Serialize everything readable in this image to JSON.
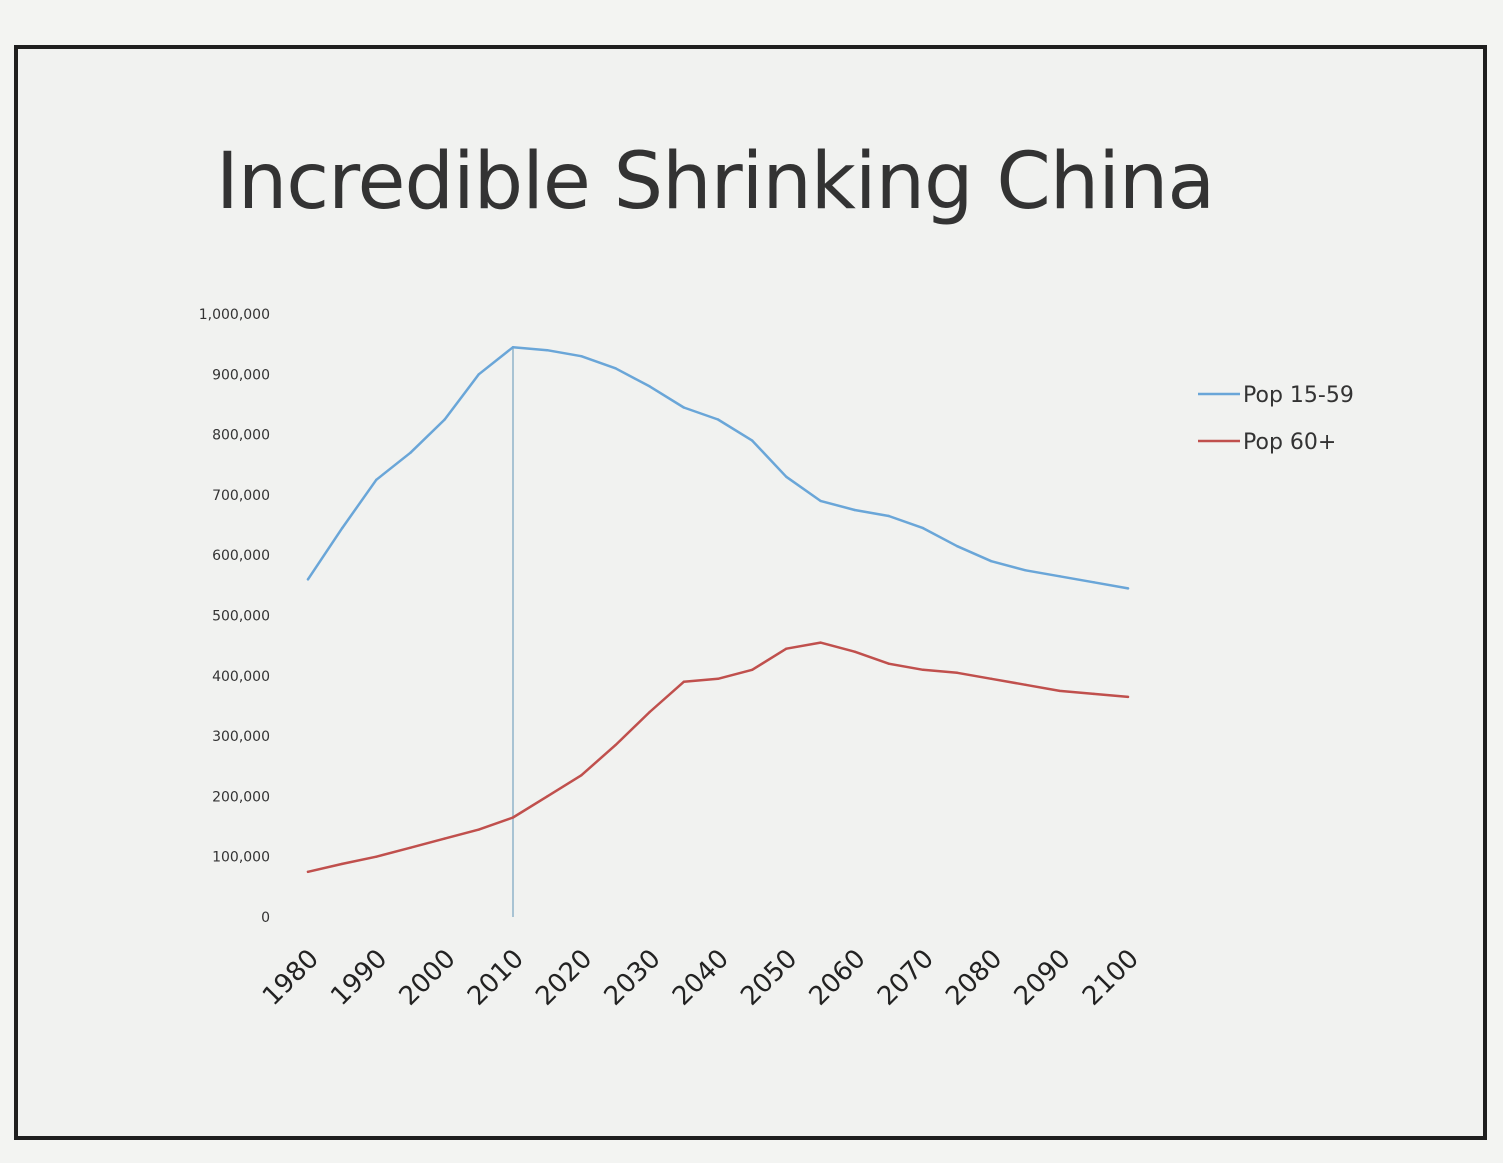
{
  "chart_data": {
    "type": "line",
    "title": "Incredible Shrinking China",
    "xlabel": "",
    "ylabel": "",
    "ylim": [
      0,
      1000000
    ],
    "xlim": [
      1980,
      2100
    ],
    "x_tick_labels": [
      "1980",
      "1990",
      "2000",
      "2010",
      "2020",
      "2030",
      "2040",
      "2050",
      "2060",
      "2070",
      "2080",
      "2090",
      "2100"
    ],
    "y_tick_labels": [
      "0",
      "100,000",
      "200,000",
      "300,000",
      "400,000",
      "500,000",
      "600,000",
      "700,000",
      "800,000",
      "900,000",
      "1,000,000"
    ],
    "y_ticks": [
      0,
      100000,
      200000,
      300000,
      400000,
      500000,
      600000,
      700000,
      800000,
      900000,
      1000000
    ],
    "grid": false,
    "legend_position": "right",
    "reference_line": {
      "x": 2010,
      "color": "#8fb3c9"
    },
    "series": [
      {
        "name": "Pop 15-59",
        "color": "#6aa6d8",
        "x": [
          1980,
          1985,
          1990,
          1995,
          2000,
          2005,
          2010,
          2015,
          2020,
          2025,
          2030,
          2035,
          2040,
          2045,
          2050,
          2055,
          2060,
          2065,
          2070,
          2075,
          2080,
          2085,
          2090,
          2095,
          2100
        ],
        "values": [
          560000,
          645000,
          725000,
          770000,
          825000,
          900000,
          945000,
          940000,
          930000,
          910000,
          880000,
          845000,
          825000,
          790000,
          730000,
          690000,
          675000,
          665000,
          645000,
          615000,
          590000,
          575000,
          565000,
          555000,
          545000
        ]
      },
      {
        "name": "Pop 60+",
        "color": "#c0504d",
        "x": [
          1980,
          1985,
          1990,
          1995,
          2000,
          2005,
          2010,
          2015,
          2020,
          2025,
          2030,
          2035,
          2040,
          2045,
          2050,
          2055,
          2060,
          2065,
          2070,
          2075,
          2080,
          2085,
          2090,
          2095,
          2100
        ],
        "values": [
          75000,
          88000,
          100000,
          115000,
          130000,
          145000,
          165000,
          200000,
          235000,
          285000,
          340000,
          390000,
          395000,
          410000,
          445000,
          455000,
          440000,
          420000,
          410000,
          405000,
          395000,
          385000,
          375000,
          370000,
          365000
        ]
      }
    ]
  }
}
